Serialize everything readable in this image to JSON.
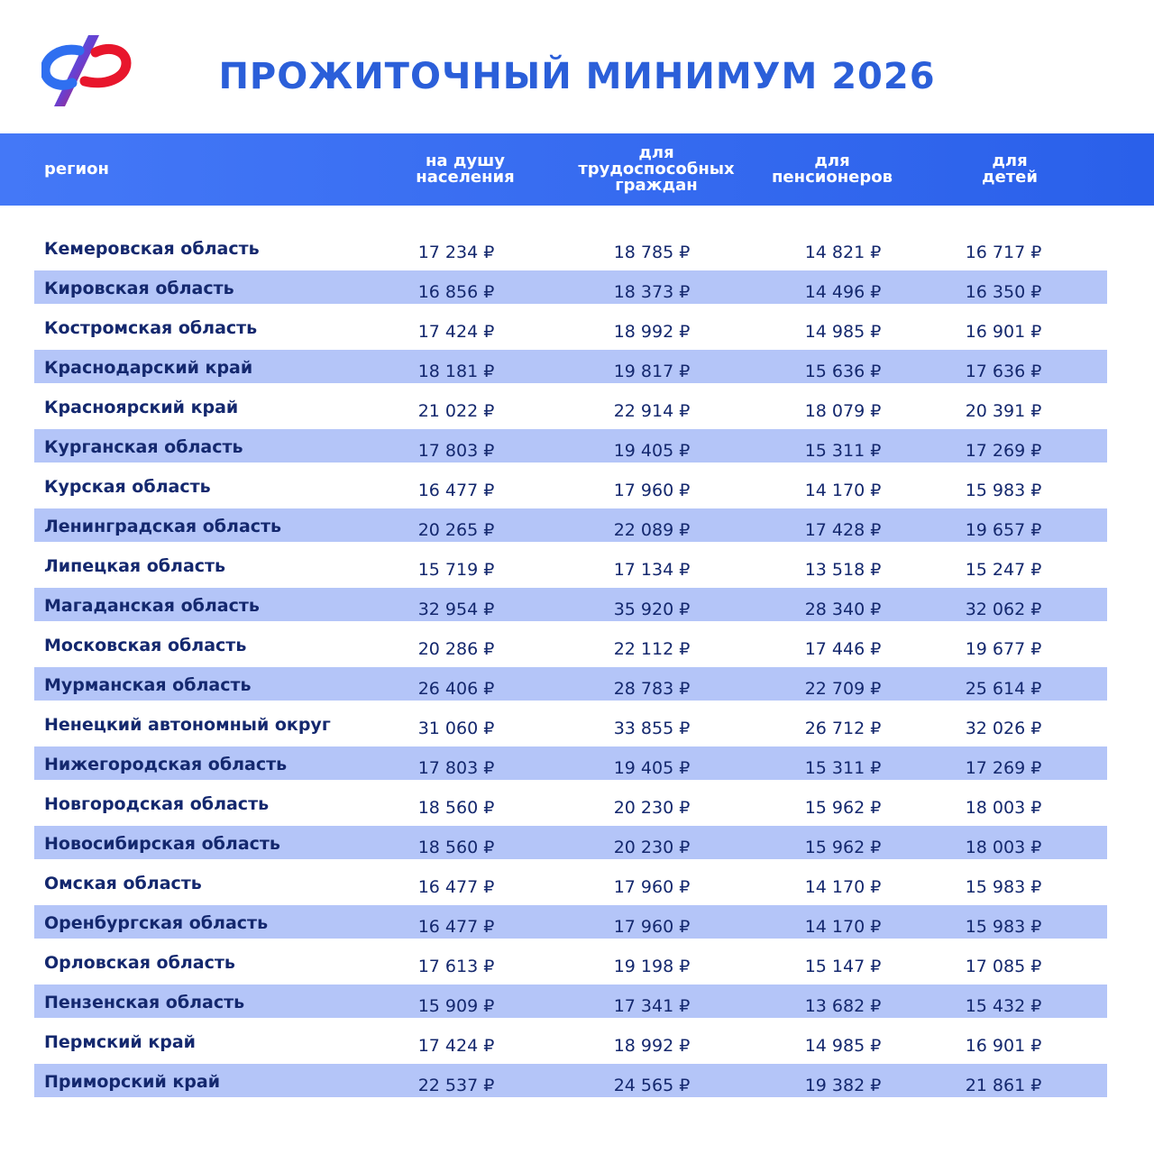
{
  "header": {
    "title": "ПРОЖИТОЧНЫЙ МИНИМУМ 2026",
    "logo_text": "СФР"
  },
  "colors": {
    "accent": "#2b5fd9",
    "header_bar": "#3468f0",
    "band": "#b4c5f8",
    "text": "#14286e"
  },
  "table": {
    "columns": [
      "регион",
      "на душу\nнаселения",
      "для\nтрудоспособных\nграждан",
      "для\nпенсионеров",
      "для\nдетей"
    ],
    "rows": [
      [
        "Кемеровская область",
        "17 234 ₽",
        "18 785 ₽",
        "14 821 ₽",
        "16 717 ₽"
      ],
      [
        "Кировская область",
        "16 856 ₽",
        "18 373 ₽",
        "14 496 ₽",
        "16 350 ₽"
      ],
      [
        "Костромская область",
        "17 424 ₽",
        "18 992 ₽",
        "14 985 ₽",
        "16 901 ₽"
      ],
      [
        "Краснодарский край",
        "18 181 ₽",
        "19 817 ₽",
        "15 636 ₽",
        "17 636 ₽"
      ],
      [
        "Красноярский край",
        "21 022 ₽",
        "22 914 ₽",
        "18 079 ₽",
        "20 391 ₽"
      ],
      [
        "Курганская область",
        "17 803 ₽",
        "19 405 ₽",
        "15 311 ₽",
        "17 269 ₽"
      ],
      [
        "Курская область",
        "16 477 ₽",
        "17 960 ₽",
        "14 170 ₽",
        "15 983 ₽"
      ],
      [
        "Ленинградская область",
        "20 265 ₽",
        "22 089 ₽",
        "17 428 ₽",
        "19 657 ₽"
      ],
      [
        "Липецкая область",
        "15 719 ₽",
        "17 134 ₽",
        "13 518 ₽",
        "15 247 ₽"
      ],
      [
        "Магаданская область",
        "32 954 ₽",
        "35 920 ₽",
        "28 340 ₽",
        "32 062 ₽"
      ],
      [
        "Московская область",
        "20 286 ₽",
        "22 112 ₽",
        "17 446 ₽",
        "19 677 ₽"
      ],
      [
        "Мурманская область",
        "26 406 ₽",
        "28 783 ₽",
        "22 709 ₽",
        "25 614 ₽"
      ],
      [
        "Ненецкий автономный округ",
        "31 060 ₽",
        "33 855 ₽",
        "26 712 ₽",
        "32 026 ₽"
      ],
      [
        "Нижегородская область",
        "17 803 ₽",
        "19 405 ₽",
        "15 311 ₽",
        "17 269 ₽"
      ],
      [
        "Новгородская область",
        "18 560 ₽",
        "20 230 ₽",
        "15 962 ₽",
        "18 003 ₽"
      ],
      [
        "Новосибирская область",
        "18 560 ₽",
        "20 230 ₽",
        "15 962 ₽",
        "18 003 ₽"
      ],
      [
        "Омская область",
        "16 477 ₽",
        "17 960 ₽",
        "14 170 ₽",
        "15 983 ₽"
      ],
      [
        "Оренбургская область",
        "16 477 ₽",
        "17 960 ₽",
        "14 170 ₽",
        "15 983 ₽"
      ],
      [
        "Орловская область",
        "17 613 ₽",
        "19 198 ₽",
        "15 147 ₽",
        "17 085 ₽"
      ],
      [
        "Пензенская область",
        "15 909 ₽",
        "17 341 ₽",
        "13 682 ₽",
        "15 432 ₽"
      ],
      [
        "Пермский край",
        "17 424 ₽",
        "18 992 ₽",
        "14 985 ₽",
        "16 901 ₽"
      ],
      [
        "Приморский край",
        "22 537 ₽",
        "24 565 ₽",
        "19 382 ₽",
        "21 861 ₽"
      ]
    ]
  }
}
